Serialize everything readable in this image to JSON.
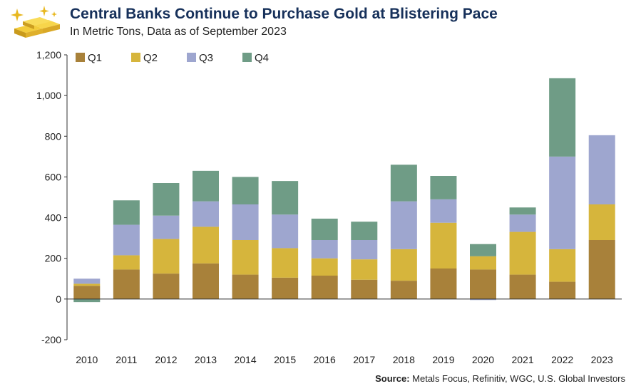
{
  "header": {
    "title": "Central Banks Continue to Purchase Gold at Blistering Pace",
    "subtitle": "In Metric Tons, Data as of September 2023",
    "logo_icon": "gold-bars-sparkle-icon"
  },
  "source": {
    "label": "Source:",
    "text": "Metals Focus, Refinitiv, WGC, U.S. Global Investors"
  },
  "colors": {
    "Q1": "#a8813a",
    "Q2": "#d6b53c",
    "Q3": "#9ea6cf",
    "Q4": "#6f9c86",
    "title": "#16305a"
  },
  "chart_data": {
    "type": "bar",
    "stacked": true,
    "categories": [
      "2010",
      "2011",
      "2012",
      "2013",
      "2014",
      "2015",
      "2016",
      "2017",
      "2018",
      "2019",
      "2020",
      "2021",
      "2022",
      "2023"
    ],
    "series": [
      {
        "name": "Q1",
        "values": [
          65,
          145,
          125,
          175,
          120,
          105,
          115,
          95,
          90,
          150,
          145,
          120,
          85,
          290
        ]
      },
      {
        "name": "Q2",
        "values": [
          10,
          70,
          170,
          180,
          170,
          145,
          85,
          100,
          155,
          225,
          65,
          210,
          160,
          175
        ]
      },
      {
        "name": "Q3",
        "values": [
          25,
          150,
          115,
          125,
          175,
          165,
          90,
          95,
          235,
          115,
          -5,
          85,
          455,
          340
        ]
      },
      {
        "name": "Q4",
        "values": [
          -15,
          120,
          160,
          150,
          135,
          165,
          105,
          90,
          180,
          115,
          60,
          35,
          385,
          0
        ]
      }
    ],
    "yticks": [
      "1,200",
      "1,000",
      "800",
      "600",
      "400",
      "200",
      "0",
      "-200"
    ],
    "ylim": [
      -200,
      1200
    ],
    "legend_position": "top-left",
    "grid": false
  }
}
